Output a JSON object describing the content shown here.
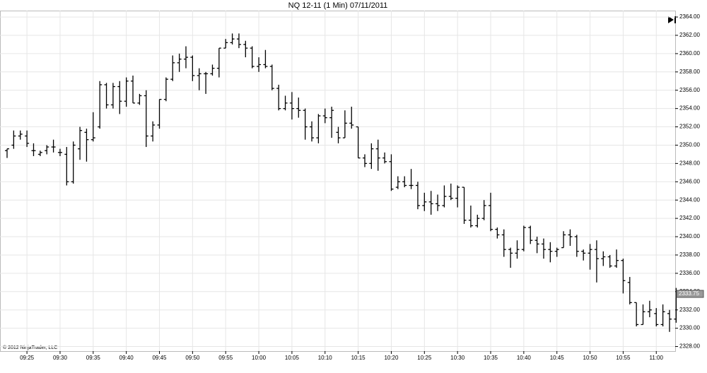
{
  "chart_data": {
    "type": "ohlc",
    "title": "NQ 12-11 (1 Min)  07/11/2011",
    "copyright": "© 2012 NinjaTrader, LLC",
    "color": "#000000",
    "grid": true,
    "categories": [
      null,
      null,
      null,
      "09:25",
      null,
      null,
      null,
      null,
      "09:30",
      null,
      null,
      null,
      null,
      "09:35",
      null,
      null,
      null,
      null,
      "09:40",
      null,
      null,
      null,
      null,
      "09:45",
      null,
      null,
      null,
      null,
      "09:50",
      null,
      null,
      null,
      null,
      "09:55",
      null,
      null,
      null,
      null,
      "10:00",
      null,
      null,
      null,
      null,
      "10:05",
      null,
      null,
      null,
      null,
      "10:10",
      null,
      null,
      null,
      null,
      "10:15",
      null,
      null,
      null,
      null,
      "10:20",
      null,
      null,
      null,
      null,
      "10:25",
      null,
      null,
      null,
      null,
      "10:30",
      null,
      null,
      null,
      null,
      "10:35",
      null,
      null,
      null,
      null,
      "10:40",
      null,
      null,
      null,
      null,
      "10:45",
      null,
      null,
      null,
      null,
      "10:50",
      null,
      null,
      null,
      null,
      "10:55",
      null,
      null,
      null,
      null,
      "11:00",
      null,
      null,
      null
    ],
    "open": [
      2349.4,
      2350,
      2351,
      2351,
      2349.4,
      2349,
      2349.4,
      2349.8,
      2349.2,
      2349,
      2346,
      2349.6,
      2351.4,
      2350.6,
      2352,
      2356.6,
      2354.4,
      2356.4,
      2354.8,
      2357,
      2354.6,
      2355.4,
      2351,
      2352.2,
      2355,
      2357.2,
      2359,
      2359.4,
      2359.6,
      2357.6,
      2357.8,
      2357.8,
      2358.4,
      2360.6,
      2361.2,
      2361.6,
      2361,
      2360.6,
      2358.6,
      2358.8,
      2358.6,
      2356.2,
      2354,
      2354.6,
      2354,
      2353.8,
      2352,
      2350.8,
      2353.2,
      2353,
      2351.4,
      2350.8,
      2352.4,
      2352,
      2348.6,
      2348,
      2349.6,
      2348.6,
      2348.2,
      2345.4,
      2346,
      2345.6,
      2345.6,
      2343.4,
      2343.8,
      2343.6,
      2343.4,
      2344.4,
      2344.2,
      2345.4,
      2341.8,
      2341.2,
      2342,
      2343.4,
      2340.8,
      2340.2,
      2338.6,
      2338.2,
      2338.6,
      2341,
      2339.6,
      2339.2,
      2338.6,
      2338.4,
      2338.8,
      2340.2,
      2340,
      2338.4,
      2338.2,
      2338.6,
      2337.6,
      2337.8,
      2336.8,
      2337.4,
      2335,
      2332.8,
      2330.4,
      2331.8,
      2331.6,
      2330.4,
      2331.6,
      2331
    ],
    "high": [
      2349.6,
      2351.6,
      2351.6,
      2351.6,
      2350.2,
      2349.4,
      2350,
      2350.6,
      2349.6,
      2349.8,
      2350.4,
      2352,
      2351.8,
      2353.6,
      2357,
      2356.8,
      2356.8,
      2357,
      2357.4,
      2357.6,
      2355.6,
      2356,
      2352.6,
      2355,
      2357.4,
      2359.8,
      2360,
      2360.8,
      2359.8,
      2358.4,
      2358,
      2358.8,
      2360.6,
      2361.6,
      2362.2,
      2362.2,
      2361.4,
      2360.8,
      2359.6,
      2360.4,
      2358.8,
      2356.6,
      2355.4,
      2355.8,
      2355.2,
      2354,
      2352.6,
      2353.4,
      2354,
      2354.2,
      2352,
      2353.8,
      2354.2,
      2352,
      2349,
      2350.2,
      2350.6,
      2349.2,
      2349,
      2346.6,
      2346.6,
      2347.4,
      2346,
      2344.8,
      2345,
      2344.6,
      2345.6,
      2345.8,
      2345.6,
      2345.4,
      2343.4,
      2342.4,
      2344,
      2344.8,
      2341,
      2340.8,
      2338.8,
      2339.6,
      2341.2,
      2341.2,
      2340,
      2339.8,
      2339.4,
      2338.8,
      2340.6,
      2340.8,
      2340.2,
      2338.6,
      2339.2,
      2339.6,
      2338.4,
      2338,
      2338.6,
      2337.6,
      2335.6,
      2332.8,
      2332.6,
      2333,
      2332.2,
      2332.6,
      2332,
      2334.4
    ],
    "low": [
      2348.6,
      2349.6,
      2350.6,
      2349.8,
      2348.8,
      2348.8,
      2349,
      2349.2,
      2348.8,
      2345.6,
      2345.8,
      2348.4,
      2348.2,
      2350.4,
      2351.8,
      2354,
      2354,
      2353.4,
      2354.2,
      2354.6,
      2354.4,
      2349.8,
      2350.4,
      2351.8,
      2354.8,
      2357,
      2358,
      2358.4,
      2357,
      2356,
      2355.6,
      2357.6,
      2357.4,
      2360.6,
      2361,
      2360.6,
      2359.6,
      2358.4,
      2358,
      2358.4,
      2356,
      2353.8,
      2353.8,
      2352.8,
      2353,
      2350.6,
      2350.4,
      2350.2,
      2352.4,
      2350.8,
      2350.2,
      2350.8,
      2351.8,
      2348.6,
      2347.6,
      2347.4,
      2347.2,
      2348,
      2345,
      2345.2,
      2345.4,
      2345.2,
      2343,
      2342.8,
      2342.4,
      2342.8,
      2343.2,
      2344,
      2343.2,
      2341.4,
      2341,
      2341,
      2341.8,
      2340.6,
      2339.8,
      2337.8,
      2336.6,
      2337.6,
      2338.4,
      2339.2,
      2338.2,
      2337.6,
      2337.2,
      2337.8,
      2338.8,
      2339,
      2337.8,
      2337.4,
      2336.4,
      2335,
      2336.8,
      2336.6,
      2336.6,
      2333.8,
      2332.6,
      2330.2,
      2330.4,
      2331.2,
      2330.2,
      2330.2,
      2329.6,
      2330.6
    ],
    "close": [
      2349.6,
      2351,
      2351.2,
      2350.2,
      2349.4,
      2349.2,
      2349.8,
      2349.8,
      2349.2,
      2346,
      2350,
      2351.6,
      2350.6,
      2350.8,
      2356.6,
      2354.4,
      2356.4,
      2354.8,
      2357,
      2354.6,
      2355.4,
      2351,
      2352.2,
      2355,
      2357.2,
      2359,
      2359.4,
      2359.6,
      2357.6,
      2357.8,
      2357.8,
      2358.4,
      2360.6,
      2361.2,
      2361.6,
      2361,
      2360.6,
      2358.6,
      2358.8,
      2358.6,
      2356.2,
      2354,
      2354.6,
      2354,
      2353.8,
      2352,
      2350.8,
      2353.2,
      2353,
      2353.8,
      2350.8,
      2352.4,
      2352.2,
      2348.6,
      2348,
      2349.6,
      2348.6,
      2348.2,
      2345.2,
      2346,
      2345.6,
      2345.6,
      2343.4,
      2343.8,
      2343.6,
      2343.4,
      2344.4,
      2344.2,
      2345.4,
      2341.8,
      2341.2,
      2342,
      2343.4,
      2340.8,
      2340.2,
      2338.6,
      2338.2,
      2338.6,
      2341,
      2339.6,
      2339.2,
      2338.6,
      2338.4,
      2338.6,
      2340.2,
      2340,
      2338.4,
      2338.2,
      2338.6,
      2337.6,
      2337.8,
      2336.8,
      2337.4,
      2335.2,
      2332.8,
      2330.4,
      2331.8,
      2332,
      2330.4,
      2331.8,
      2331,
      2333.75
    ],
    "ylim": [
      2327.5,
      2364.7
    ],
    "yticks": [
      {
        "value": 2328,
        "label": "2328.00"
      },
      {
        "value": 2330,
        "label": "2330.00"
      },
      {
        "value": 2332,
        "label": "2332.00"
      },
      {
        "value": 2334,
        "label": "2334.00"
      },
      {
        "value": 2336,
        "label": "2336.00"
      },
      {
        "value": 2338,
        "label": "2338.00"
      },
      {
        "value": 2340,
        "label": "2340.00"
      },
      {
        "value": 2342,
        "label": "2342.00"
      },
      {
        "value": 2344,
        "label": "2344.00"
      },
      {
        "value": 2346,
        "label": "2346.00"
      },
      {
        "value": 2348,
        "label": "2348.00"
      },
      {
        "value": 2350,
        "label": "2350.00"
      },
      {
        "value": 2352,
        "label": "2352.00"
      },
      {
        "value": 2354,
        "label": "2354.00"
      },
      {
        "value": 2356,
        "label": "2356.00"
      },
      {
        "value": 2358,
        "label": "2358.00"
      },
      {
        "value": 2360,
        "label": "2360.00"
      },
      {
        "value": 2362,
        "label": "2362.00"
      },
      {
        "value": 2364,
        "label": "2364.00"
      }
    ]
  }
}
